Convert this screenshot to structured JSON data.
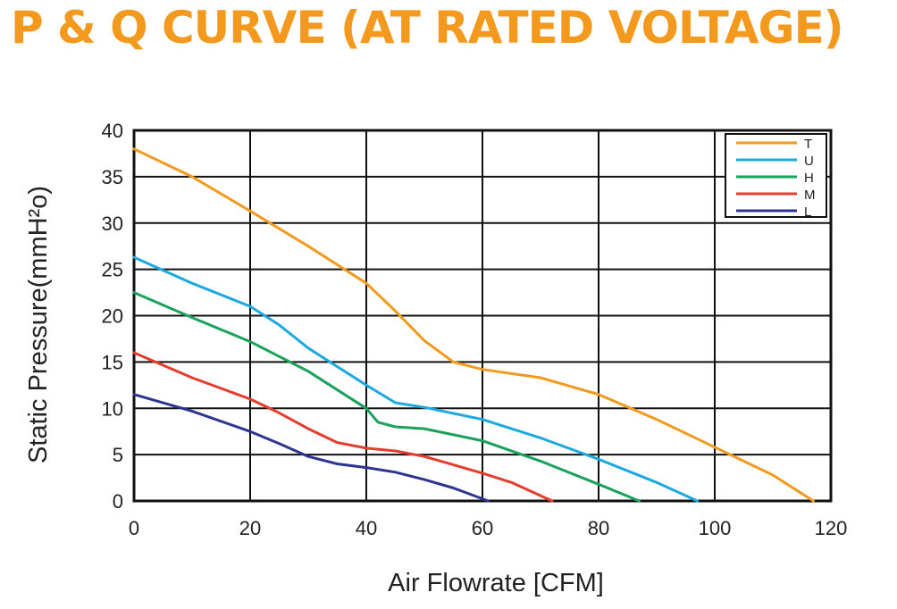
{
  "title": "P & Q CURVE (AT RATED VOLTAGE)",
  "colors": {
    "title": "#f39a1e",
    "grid": "#111111"
  },
  "chart_data": {
    "type": "line",
    "xlabel": "Air  Flowrate   [CFM]",
    "ylabel": "Static Pressure(mmH²o)",
    "xlim": [
      0,
      120
    ],
    "ylim": [
      0,
      40
    ],
    "xticks": [
      0,
      20,
      40,
      60,
      80,
      100,
      120
    ],
    "yticks": [
      0,
      5,
      10,
      15,
      20,
      25,
      30,
      35,
      40
    ],
    "grid": true,
    "legend_position": "top-right",
    "series": [
      {
        "name": "T",
        "color": "#f39a1e",
        "points": [
          [
            0,
            38
          ],
          [
            10,
            35
          ],
          [
            20,
            31.3
          ],
          [
            30,
            27.5
          ],
          [
            40,
            23.5
          ],
          [
            45,
            20.5
          ],
          [
            50,
            17.3
          ],
          [
            55,
            15
          ],
          [
            60,
            14.2
          ],
          [
            70,
            13.3
          ],
          [
            80,
            11.5
          ],
          [
            90,
            8.8
          ],
          [
            100,
            5.8
          ],
          [
            110,
            2.8
          ],
          [
            117,
            0
          ]
        ]
      },
      {
        "name": "U",
        "color": "#1ea8e0",
        "points": [
          [
            0,
            26.3
          ],
          [
            10,
            23.5
          ],
          [
            20,
            21
          ],
          [
            25,
            19
          ],
          [
            30,
            16.5
          ],
          [
            35,
            14.5
          ],
          [
            40,
            12.5
          ],
          [
            45,
            10.6
          ],
          [
            50,
            10.1
          ],
          [
            60,
            8.8
          ],
          [
            70,
            6.8
          ],
          [
            80,
            4.5
          ],
          [
            90,
            2
          ],
          [
            97,
            0
          ]
        ]
      },
      {
        "name": "H",
        "color": "#1aa15b",
        "points": [
          [
            0,
            22.5
          ],
          [
            10,
            19.8
          ],
          [
            20,
            17.2
          ],
          [
            30,
            14
          ],
          [
            40,
            10
          ],
          [
            42,
            8.5
          ],
          [
            45,
            8
          ],
          [
            50,
            7.8
          ],
          [
            60,
            6.5
          ],
          [
            70,
            4.3
          ],
          [
            80,
            1.8
          ],
          [
            87,
            0
          ]
        ]
      },
      {
        "name": "M",
        "color": "#e43d2d",
        "points": [
          [
            0,
            16
          ],
          [
            10,
            13.3
          ],
          [
            20,
            11
          ],
          [
            25,
            9.5
          ],
          [
            30,
            7.8
          ],
          [
            35,
            6.3
          ],
          [
            40,
            5.7
          ],
          [
            45,
            5.4
          ],
          [
            50,
            4.8
          ],
          [
            60,
            3
          ],
          [
            65,
            2
          ],
          [
            72,
            0
          ]
        ]
      },
      {
        "name": "L",
        "color": "#2d3591",
        "points": [
          [
            0,
            11.5
          ],
          [
            10,
            9.7
          ],
          [
            20,
            7.5
          ],
          [
            25,
            6.2
          ],
          [
            30,
            4.8
          ],
          [
            35,
            4
          ],
          [
            40,
            3.6
          ],
          [
            45,
            3.1
          ],
          [
            50,
            2.3
          ],
          [
            55,
            1.4
          ],
          [
            61,
            0
          ]
        ]
      }
    ]
  }
}
